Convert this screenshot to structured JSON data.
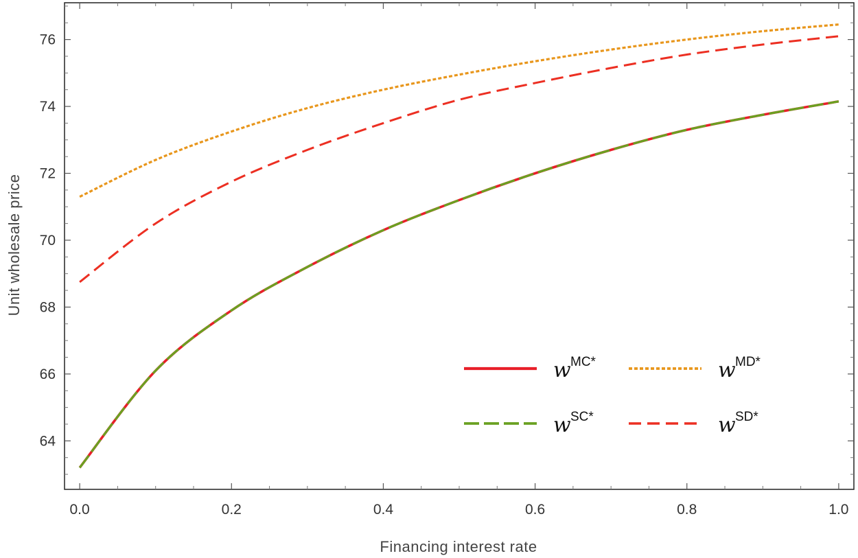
{
  "chart_data": {
    "type": "line",
    "title": "",
    "xlabel": "Financing interest rate",
    "ylabel": "Unit wholesale price",
    "xlim": [
      -0.02,
      1.02
    ],
    "ylim": [
      62.55,
      77.1
    ],
    "x_ticks": [
      {
        "value": 0.0,
        "label": "0.0"
      },
      {
        "value": 0.2,
        "label": "0.2"
      },
      {
        "value": 0.4,
        "label": "0.4"
      },
      {
        "value": 0.6,
        "label": "0.6"
      },
      {
        "value": 0.8,
        "label": "0.8"
      },
      {
        "value": 1.0,
        "label": "1.0"
      }
    ],
    "y_ticks": [
      {
        "value": 64,
        "label": "64"
      },
      {
        "value": 66,
        "label": "66"
      },
      {
        "value": 68,
        "label": "68"
      },
      {
        "value": 70,
        "label": "70"
      },
      {
        "value": 72,
        "label": "72"
      },
      {
        "value": 74,
        "label": "74"
      },
      {
        "value": 76,
        "label": "76"
      }
    ],
    "x": [
      0.0,
      0.1,
      0.2,
      0.3,
      0.4,
      0.5,
      0.6,
      0.7,
      0.8,
      0.9,
      1.0
    ],
    "grid": false,
    "legend_position": "bottom-right",
    "series": [
      {
        "name": "w",
        "sup": "MC*",
        "color": "#e8202a",
        "dash": "solid",
        "values": [
          63.2,
          66.1,
          67.9,
          69.2,
          70.3,
          71.2,
          72.0,
          72.7,
          73.3,
          73.75,
          74.15
        ]
      },
      {
        "name": "w",
        "sup": "SC*",
        "color": "#6aa121",
        "dash": "long-dash",
        "values": [
          63.2,
          66.1,
          67.9,
          69.2,
          70.3,
          71.2,
          72.0,
          72.7,
          73.3,
          73.75,
          74.15
        ]
      },
      {
        "name": "w",
        "sup": "MD*",
        "color": "#e8961c",
        "dash": "dotted",
        "values": [
          71.3,
          72.4,
          73.25,
          73.95,
          74.5,
          74.95,
          75.35,
          75.7,
          76.0,
          76.25,
          76.45
        ]
      },
      {
        "name": "w",
        "sup": "SD*",
        "color": "#ec2f22",
        "dash": "dashed",
        "values": [
          68.75,
          70.5,
          71.75,
          72.7,
          73.5,
          74.2,
          74.7,
          75.15,
          75.55,
          75.85,
          76.1
        ]
      }
    ]
  }
}
